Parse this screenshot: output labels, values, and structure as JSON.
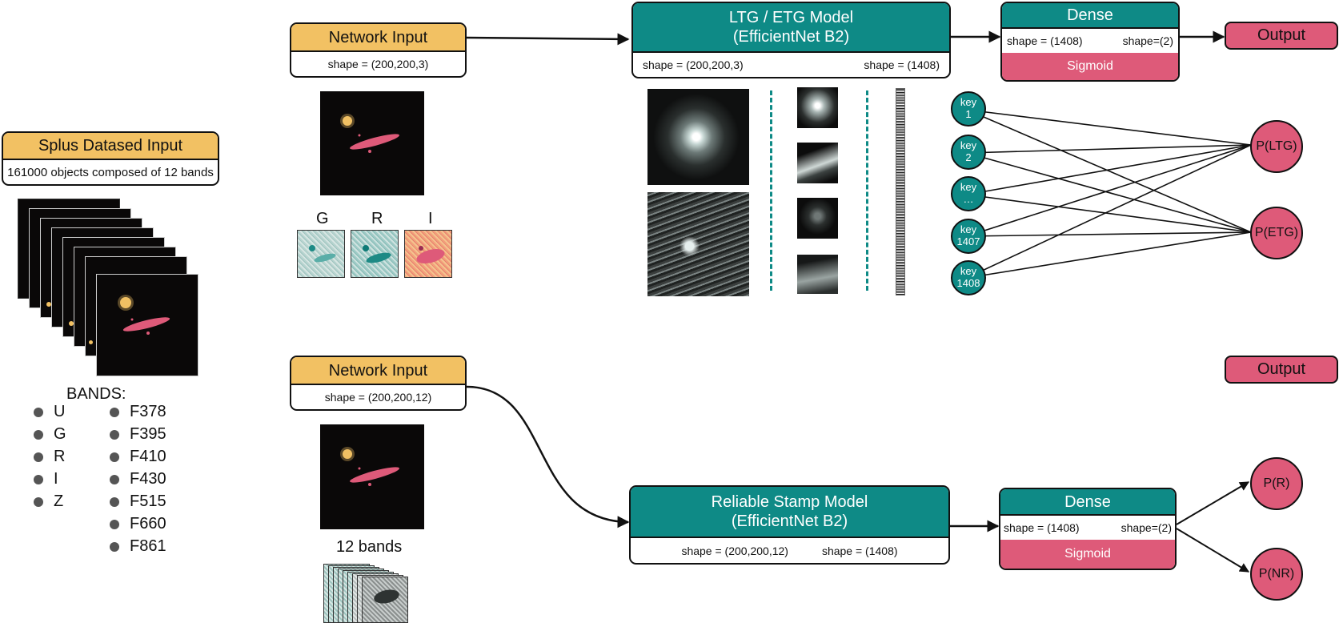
{
  "dataset": {
    "title": "Splus Datased Input",
    "subtitle": "161000 objects composed of 12 bands"
  },
  "bands": {
    "title": "BANDS:",
    "left": [
      "U",
      "G",
      "R",
      "I",
      "Z"
    ],
    "right": [
      "F378",
      "F395",
      "F410",
      "F430",
      "F515",
      "F660",
      "F861"
    ]
  },
  "top": {
    "input": {
      "title": "Network Input",
      "shape": "shape = (200,200,3)"
    },
    "channels": [
      "G",
      "R",
      "I"
    ],
    "model": {
      "title_line1": "LTG / ETG Model",
      "title_line2": "(EfficientNet B2)",
      "shape_in": "shape = (200,200,3)",
      "shape_out": "shape = (1408)"
    },
    "dense": {
      "title": "Dense",
      "shape_in": "shape = (1408)",
      "shape_out": "shape=(2)",
      "activation": "Sigmoid"
    },
    "output": "Output",
    "keys": [
      {
        "l1": "key",
        "l2": "1"
      },
      {
        "l1": "key",
        "l2": "2"
      },
      {
        "l1": "key",
        "l2": "…"
      },
      {
        "l1": "key",
        "l2": "1407"
      },
      {
        "l1": "key",
        "l2": "1408"
      }
    ],
    "classes": [
      "P(LTG)",
      "P(ETG)"
    ]
  },
  "bottom": {
    "input": {
      "title": "Network Input",
      "shape": "shape = (200,200,12)"
    },
    "stack_label": "12 bands",
    "model": {
      "title_line1": "Reliable Stamp Model",
      "title_line2": "(EfficientNet B2)",
      "shape_in": "shape = (200,200,12)",
      "shape_out": "shape = (1408)"
    },
    "dense": {
      "title": "Dense",
      "shape_in": "shape = (1408)",
      "shape_out": "shape=(2)",
      "activation": "Sigmoid"
    },
    "output": "Output",
    "classes": [
      "P(R)",
      "P(NR)"
    ]
  },
  "colors": {
    "gold": "#f2c163",
    "teal": "#0e8a86",
    "pink": "#de5a79",
    "dark": "#111111"
  }
}
